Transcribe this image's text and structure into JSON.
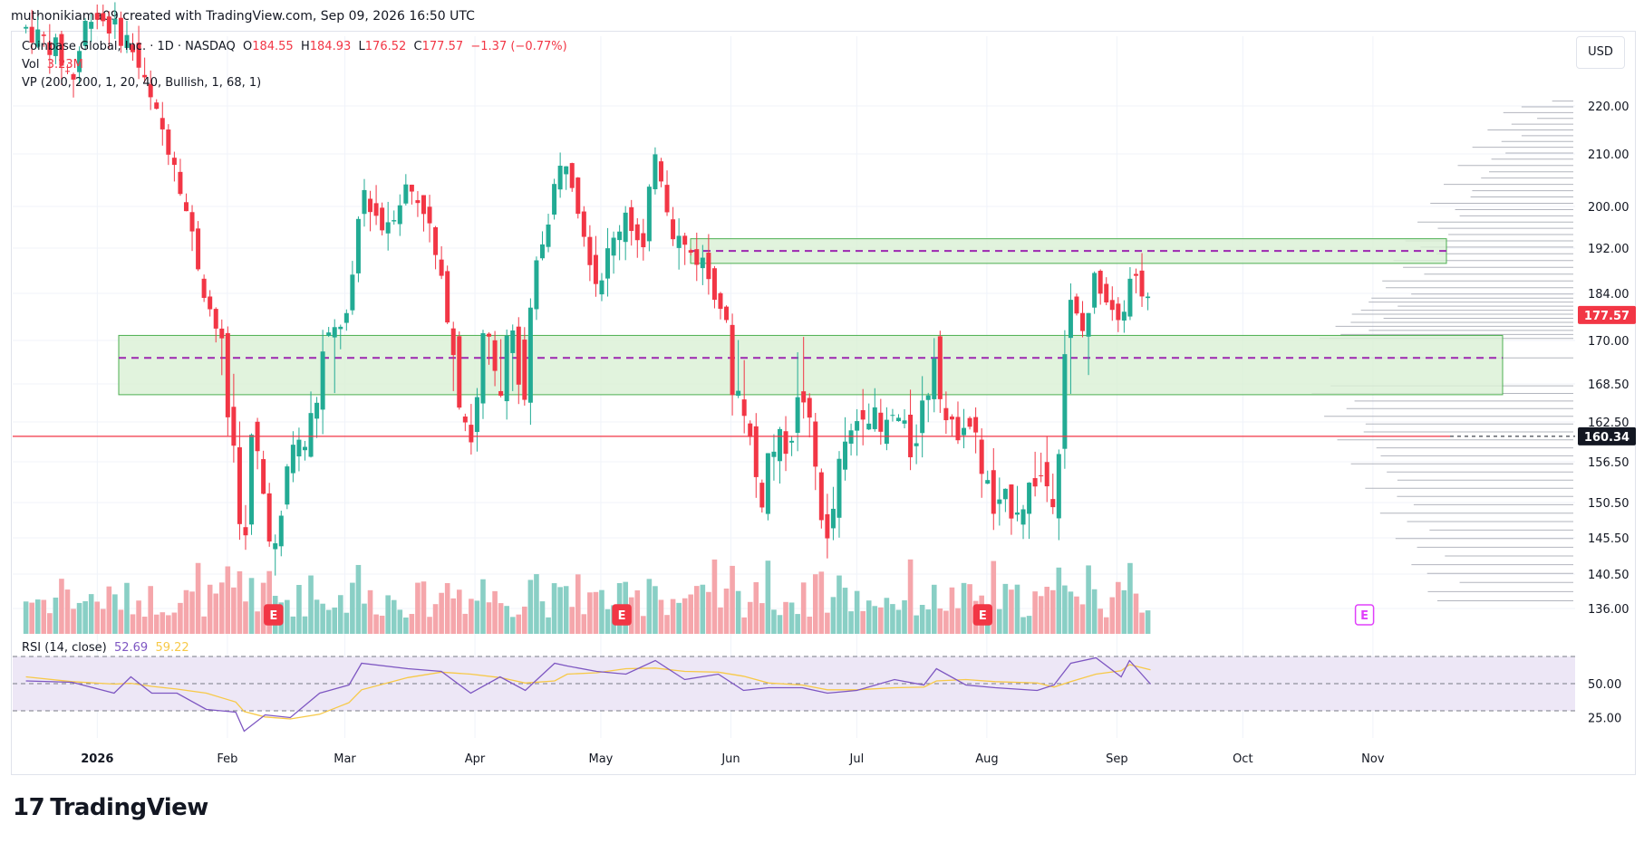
{
  "header": {
    "attribution": "muthonikiama09 created with TradingView.com, Sep 09, 2026 16:50 UTC"
  },
  "legend": {
    "symbol": "Coinbase Global, Inc. · 1D · NASDAQ",
    "open_label": "O",
    "open": "184.55",
    "high_label": "H",
    "high": "184.93",
    "low_label": "L",
    "low": "176.52",
    "close_label": "C",
    "close": "177.57",
    "change": "−1.37 (−0.77%)",
    "vol_label": "Vol",
    "vol": "3.23M",
    "vp": "VP (200, 200, 1, 20, 40, Bullish, 1, 68, 1)",
    "rsi_label": "RSI (14, close)",
    "rsi_value": "52.69",
    "rsi_ma": "59.22"
  },
  "toolbar": {
    "currency": "USD"
  },
  "branding": {
    "logo_text": "TradingView",
    "logo_mark": "17"
  },
  "colors": {
    "up": "#22ab94",
    "down": "#f23645",
    "vol_up": "#89cfc5",
    "vol_down": "#f5a6ab",
    "zone_fill": "#d9f0d5",
    "dash_line": "#9c27b0",
    "rsi_line": "#7e57c2",
    "rsi_ma": "#f7c948",
    "rsi_band": "#ede7f6"
  },
  "chart_data": {
    "type": "candlestick",
    "x_axis_labels": [
      "2026",
      "Feb",
      "Mar",
      "Apr",
      "May",
      "Jun",
      "Jul",
      "Aug",
      "Sep",
      "Oct",
      "Nov"
    ],
    "y_ticks": [
      "220.00",
      "210.00",
      "200.00",
      "192.00",
      "184.00",
      "170.00",
      "168.50",
      "162.50",
      "156.50",
      "150.50",
      "145.50",
      "140.50",
      "136.00"
    ],
    "rsi_ticks": [
      "50.00",
      "25.00"
    ],
    "price_badges": [
      {
        "value": "177.57",
        "color": "#f23645"
      },
      {
        "value": "160.34",
        "color": "#131722"
      }
    ],
    "earnings_marker": "E",
    "zones": [
      {
        "name": "upper-zone",
        "low": 189.3,
        "high": 193.8,
        "mid": 191.5
      },
      {
        "name": "lower-zone",
        "low": 166.8,
        "high": 171.5,
        "mid": 169.4
      }
    ],
    "horizontal_line": 160.34,
    "ohlc_path": [
      [
        "2025-12-15",
        236
      ],
      [
        "2025-12-22",
        232
      ],
      [
        "2025-12-26",
        225
      ],
      [
        "2025-12-30",
        240
      ],
      [
        "2026-01-05",
        236
      ],
      [
        "2026-01-09",
        233
      ],
      [
        "2026-01-14",
        220
      ],
      [
        "2026-01-20",
        208
      ],
      [
        "2026-01-23",
        196
      ],
      [
        "2026-01-27",
        183
      ],
      [
        "2026-01-30",
        171
      ],
      [
        "2026-02-03",
        157
      ],
      [
        "2026-02-05",
        141
      ],
      [
        "2026-02-07",
        162
      ],
      [
        "2026-02-10",
        150
      ],
      [
        "2026-02-13",
        142
      ],
      [
        "2026-02-16",
        160
      ],
      [
        "2026-02-19",
        158
      ],
      [
        "2026-02-23",
        168
      ],
      [
        "2026-02-26",
        172
      ],
      [
        "2026-03-02",
        178
      ],
      [
        "2026-03-05",
        204
      ],
      [
        "2026-03-10",
        196
      ],
      [
        "2026-03-16",
        204
      ],
      [
        "2026-03-20",
        200
      ],
      [
        "2026-03-24",
        185
      ],
      [
        "2026-03-27",
        170
      ],
      [
        "2026-03-31",
        160
      ],
      [
        "2026-04-03",
        171
      ],
      [
        "2026-04-07",
        166
      ],
      [
        "2026-04-09",
        176
      ],
      [
        "2026-04-13",
        164
      ],
      [
        "2026-04-15",
        186
      ],
      [
        "2026-04-20",
        204
      ],
      [
        "2026-04-23",
        210
      ],
      [
        "2026-04-27",
        196
      ],
      [
        "2026-04-30",
        186
      ],
      [
        "2026-05-04",
        193
      ],
      [
        "2026-05-07",
        200
      ],
      [
        "2026-05-11",
        190
      ],
      [
        "2026-05-14",
        212
      ],
      [
        "2026-05-18",
        196
      ],
      [
        "2026-05-21",
        192
      ],
      [
        "2026-05-25",
        190
      ],
      [
        "2026-05-29",
        183
      ],
      [
        "2026-06-01",
        169
      ],
      [
        "2026-06-04",
        166
      ],
      [
        "2026-06-08",
        150
      ],
      [
        "2026-06-10",
        158
      ],
      [
        "2026-06-15",
        160
      ],
      [
        "2026-06-18",
        168
      ],
      [
        "2026-06-22",
        152
      ],
      [
        "2026-06-24",
        144
      ],
      [
        "2026-06-27",
        156
      ],
      [
        "2026-07-01",
        163
      ],
      [
        "2026-07-03",
        166
      ],
      [
        "2026-07-07",
        160
      ],
      [
        "2026-07-10",
        164
      ],
      [
        "2026-07-14",
        158
      ],
      [
        "2026-07-17",
        166
      ],
      [
        "2026-07-20",
        172
      ],
      [
        "2026-07-23",
        160
      ],
      [
        "2026-07-27",
        164
      ],
      [
        "2026-07-30",
        158
      ],
      [
        "2026-08-03",
        148
      ],
      [
        "2026-08-05",
        150
      ],
      [
        "2026-08-10",
        151
      ],
      [
        "2026-08-13",
        155
      ],
      [
        "2026-08-17",
        152
      ],
      [
        "2026-08-19",
        166
      ],
      [
        "2026-08-21",
        181
      ],
      [
        "2026-08-24",
        172
      ],
      [
        "2026-08-27",
        188
      ],
      [
        "2026-08-31",
        180
      ],
      [
        "2026-09-02",
        177
      ],
      [
        "2026-09-04",
        188
      ],
      [
        "2026-09-08",
        184
      ],
      [
        "2026-09-09",
        177.57
      ]
    ],
    "rsi_path": [
      [
        "2025-12-15",
        55
      ],
      [
        "2025-12-26",
        48
      ],
      [
        "2026-01-05",
        46
      ],
      [
        "2026-01-09",
        52
      ],
      [
        "2026-01-14",
        46
      ],
      [
        "2026-01-20",
        40
      ],
      [
        "2026-01-27",
        34
      ],
      [
        "2026-02-03",
        26
      ],
      [
        "2026-02-05",
        18
      ],
      [
        "2026-02-10",
        24
      ],
      [
        "2026-02-16",
        28
      ],
      [
        "2026-02-23",
        40
      ],
      [
        "2026-03-02",
        52
      ],
      [
        "2026-03-05",
        62
      ],
      [
        "2026-03-16",
        64
      ],
      [
        "2026-03-24",
        56
      ],
      [
        "2026-03-31",
        46
      ],
      [
        "2026-04-07",
        52
      ],
      [
        "2026-04-13",
        48
      ],
      [
        "2026-04-20",
        62
      ],
      [
        "2026-04-23",
        66
      ],
      [
        "2026-04-30",
        56
      ],
      [
        "2026-05-07",
        60
      ],
      [
        "2026-05-14",
        64
      ],
      [
        "2026-05-21",
        56
      ],
      [
        "2026-05-29",
        54
      ],
      [
        "2026-06-04",
        48
      ],
      [
        "2026-06-10",
        44
      ],
      [
        "2026-06-18",
        50
      ],
      [
        "2026-06-24",
        40
      ],
      [
        "2026-07-01",
        48
      ],
      [
        "2026-07-10",
        50
      ],
      [
        "2026-07-17",
        52
      ],
      [
        "2026-07-20",
        58
      ],
      [
        "2026-07-27",
        52
      ],
      [
        "2026-08-03",
        44
      ],
      [
        "2026-08-13",
        48
      ],
      [
        "2026-08-17",
        46
      ],
      [
        "2026-08-21",
        68
      ],
      [
        "2026-08-27",
        66
      ],
      [
        "2026-09-02",
        58
      ],
      [
        "2026-09-04",
        64
      ],
      [
        "2026-09-09",
        52.69
      ]
    ]
  }
}
